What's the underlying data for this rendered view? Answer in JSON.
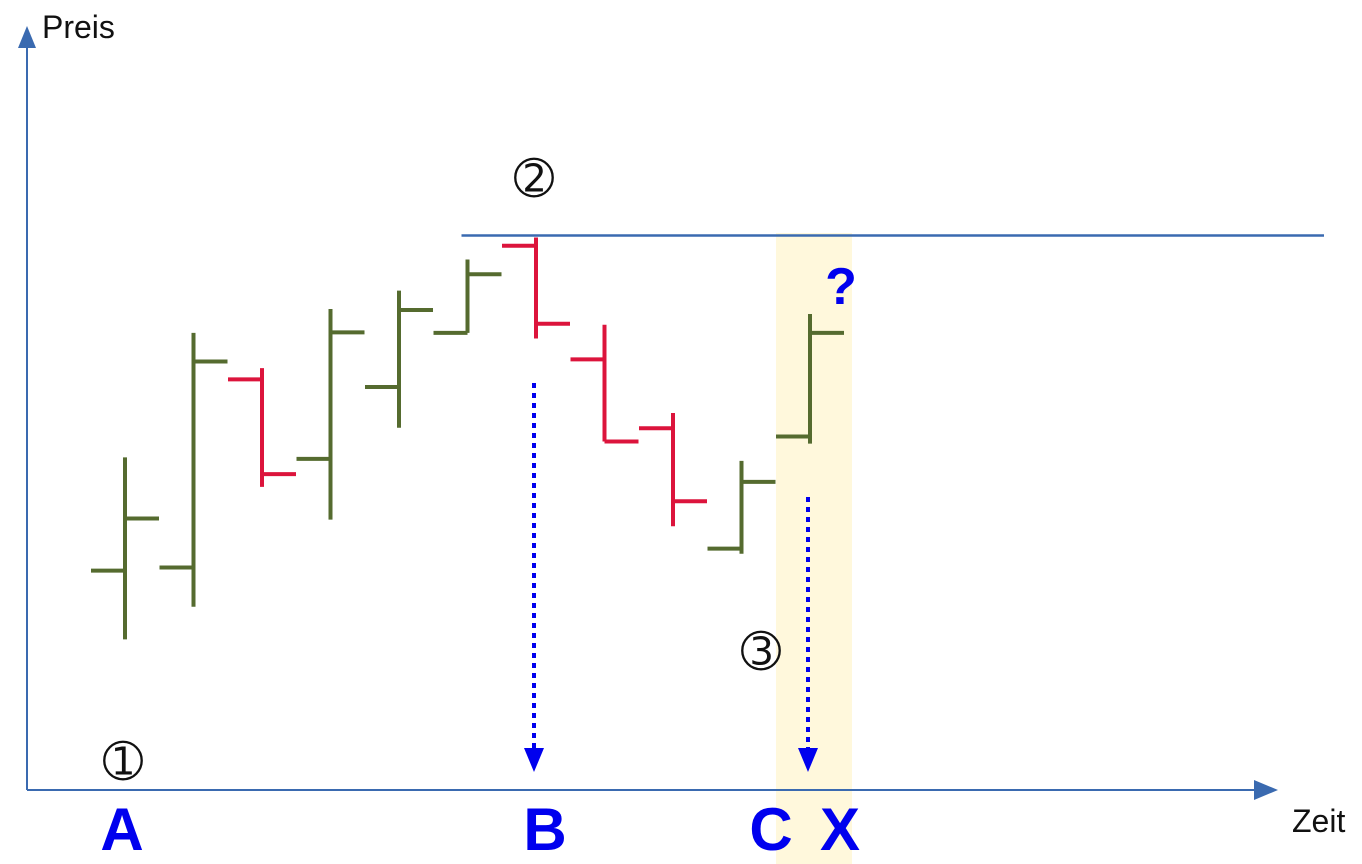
{
  "chart_data": {
    "type": "ohlc",
    "title": "",
    "xlabel": "Zeit",
    "ylabel": "Preis",
    "grid": false,
    "legend": "none",
    "y_axis_values_printed": false,
    "colors": {
      "up_bar": "#556B2F",
      "down_bar": "#DC143C",
      "axis": "#3A6AB0",
      "resistance_line": "#3A6AB0",
      "arrow": "#0000EE",
      "time_labels": "#0000EE",
      "highlight_band": "#FFF8DC",
      "point_labels": "#111111"
    },
    "price_scale": {
      "min": 0,
      "max": 100
    },
    "bars": [
      {
        "direction": "up",
        "open": 29.3,
        "high": 51.5,
        "low": 15.8,
        "close": 39.5
      },
      {
        "direction": "up",
        "open": 29.9,
        "high": 75.9,
        "low": 22.2,
        "close": 70.3
      },
      {
        "direction": "down",
        "open": 66.8,
        "high": 69.0,
        "low": 45.7,
        "close": 48.2
      },
      {
        "direction": "up",
        "open": 51.2,
        "high": 80.6,
        "low": 39.3,
        "close": 76.0
      },
      {
        "direction": "up",
        "open": 65.3,
        "high": 84.2,
        "low": 57.3,
        "close": 80.4
      },
      {
        "direction": "up",
        "open": 75.9,
        "high": 90.3,
        "low": 75.9,
        "close": 87.4
      },
      {
        "direction": "down",
        "open": 93.0,
        "high": 94.6,
        "low": 74.8,
        "close": 77.7
      },
      {
        "direction": "down",
        "open": 70.7,
        "high": 77.5,
        "low": 54.6,
        "close": 54.6
      },
      {
        "direction": "down",
        "open": 57.2,
        "high": 60.2,
        "low": 38.0,
        "close": 42.9
      },
      {
        "direction": "up",
        "open": 33.6,
        "high": 50.8,
        "low": 32.6,
        "close": 46.7
      },
      {
        "direction": "up",
        "open": 55.6,
        "high": 79.6,
        "low": 54.2,
        "close": 75.9
      }
    ],
    "resistance_level": 95.0,
    "point_labels": [
      {
        "text": "➀",
        "bar": 0,
        "anchor": "below"
      },
      {
        "text": "➁",
        "bar": 6,
        "anchor": "above"
      },
      {
        "text": "➂",
        "bar": 9,
        "anchor": "below"
      }
    ],
    "time_labels": [
      {
        "text": "A",
        "bar": 0
      },
      {
        "text": "B",
        "bar": 6
      },
      {
        "text": "C",
        "bar": 9
      },
      {
        "text": "X",
        "bar": 10
      }
    ],
    "projection_arrows": [
      {
        "bar": 6
      },
      {
        "bar": 10
      }
    ],
    "highlight_bar": 10,
    "question_label": "?"
  }
}
